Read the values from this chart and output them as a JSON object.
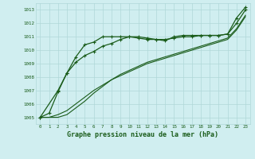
{
  "title": "Graphe pression niveau de la mer (hPa)",
  "background_color": "#d0eef0",
  "grid_color": "#b0d8d8",
  "line_color": "#1a5c1a",
  "xlim": [
    -0.5,
    23.5
  ],
  "ylim": [
    1004.5,
    1013.5
  ],
  "yticks": [
    1005,
    1006,
    1007,
    1008,
    1009,
    1010,
    1011,
    1012,
    1013
  ],
  "xticks": [
    0,
    1,
    2,
    3,
    4,
    5,
    6,
    7,
    8,
    9,
    10,
    11,
    12,
    13,
    14,
    15,
    16,
    17,
    18,
    19,
    20,
    21,
    22,
    23
  ],
  "series1_x": [
    0,
    1,
    2,
    3,
    4,
    5,
    6,
    7,
    8,
    9,
    10,
    11,
    12,
    13,
    14,
    15,
    16,
    17,
    18,
    19,
    20,
    21,
    22,
    23
  ],
  "series1_y": [
    1005.0,
    1005.3,
    1006.9,
    1008.3,
    1009.5,
    1010.4,
    1010.6,
    1011.0,
    1011.0,
    1011.0,
    1011.0,
    1010.9,
    1010.8,
    1010.8,
    1010.7,
    1011.0,
    1011.1,
    1011.1,
    1011.1,
    1011.1,
    1011.1,
    1011.2,
    1012.4,
    1013.2
  ],
  "series2_x": [
    0,
    1,
    2,
    3,
    4,
    5,
    6,
    7,
    8,
    9,
    10,
    11,
    12,
    13,
    14,
    15,
    16,
    17,
    18,
    19,
    20,
    21,
    22,
    23
  ],
  "series2_y": [
    1005.0,
    1005.0,
    1005.2,
    1005.5,
    1006.0,
    1006.5,
    1007.0,
    1007.4,
    1007.8,
    1008.1,
    1008.4,
    1008.7,
    1009.0,
    1009.2,
    1009.4,
    1009.6,
    1009.8,
    1010.0,
    1010.2,
    1010.4,
    1010.6,
    1010.8,
    1011.5,
    1012.5
  ],
  "series3_x": [
    0,
    2,
    3,
    4,
    5,
    6,
    7,
    8,
    9,
    10,
    11,
    12,
    13,
    14,
    15,
    16,
    17,
    18,
    19,
    20,
    21,
    22,
    23
  ],
  "series3_y": [
    1005.0,
    1007.0,
    1008.3,
    1009.1,
    1009.6,
    1009.9,
    1010.3,
    1010.5,
    1010.8,
    1011.0,
    1011.0,
    1010.9,
    1010.8,
    1010.8,
    1010.9,
    1011.0,
    1011.0,
    1011.1,
    1011.1,
    1011.1,
    1011.2,
    1012.0,
    1013.0
  ],
  "series4_x": [
    0,
    1,
    2,
    3,
    4,
    5,
    6,
    7,
    8,
    9,
    10,
    11,
    12,
    13,
    14,
    15,
    16,
    17,
    18,
    19,
    20,
    21,
    22,
    23
  ],
  "series4_y": [
    1005.0,
    1005.0,
    1005.0,
    1005.2,
    1005.7,
    1006.2,
    1006.8,
    1007.3,
    1007.8,
    1008.2,
    1008.5,
    1008.8,
    1009.1,
    1009.3,
    1009.5,
    1009.7,
    1009.9,
    1010.1,
    1010.3,
    1010.5,
    1010.7,
    1010.9,
    1011.6,
    1012.6
  ]
}
